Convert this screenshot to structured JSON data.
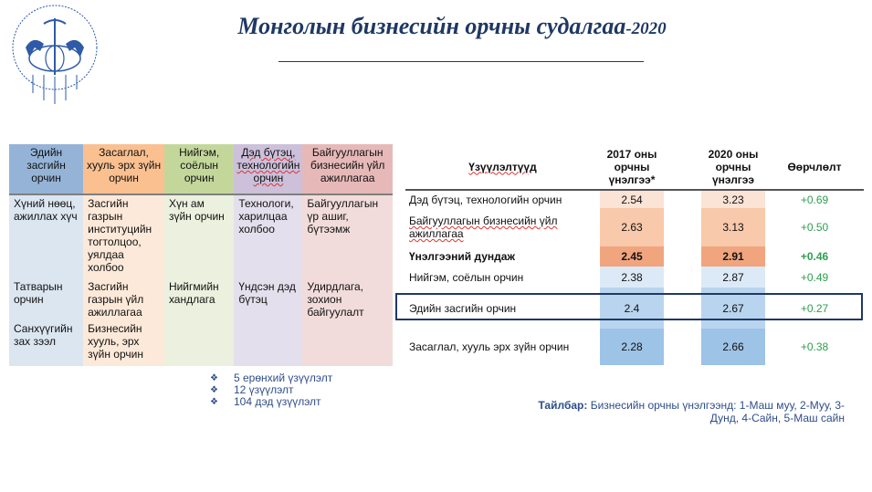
{
  "title": {
    "main": "Монголын бизнесийн орчны судалгаа",
    "year": "-2020"
  },
  "logo": {
    "text": "МОНГОЛЫН ҮНДЭСНИЙ ХУДАЛДАА АЖ ҮЙЛДВЭРИЙН ТАНХИМ",
    "color": "#2e5aa8"
  },
  "left_table": {
    "headers": [
      "Эдийн засгийн орчин",
      "Засаглал, хууль эрх зүйн орчин",
      "Нийгэм, соёлын орчин",
      "Дэд бүтэц, технологийн орчин",
      "Байгууллагын бизнесийн үйл ажиллагаа"
    ],
    "header_colors": [
      "#95b3d7",
      "#fac090",
      "#c4d79b",
      "#ccc0da",
      "#e6b9b8"
    ],
    "body_colors": [
      "#dce6f1",
      "#fde9d9",
      "#ebf1de",
      "#e4dfec",
      "#f2dcdb"
    ],
    "rows": [
      [
        "Хүний нөөц, ажиллах хүч",
        "Засгийн газрын институцийн тогтолцоо, уялдаа холбоо",
        "Хүн ам зүйн орчин",
        "Технологи, харилцаа холбоо",
        "Байгууллагын үр ашиг, бүтээмж"
      ],
      [
        "Татварын орчин",
        "Засгийн газрын үйл ажиллагаа",
        "Нийгмийн хандлага",
        "Үндсэн дэд бүтэц",
        "Удирдлага, зохион байгуулалт"
      ],
      [
        "Санхүүгийн зах зээл",
        "Бизнесийн хууль, эрх зүйн орчин",
        "",
        "",
        ""
      ]
    ]
  },
  "right_table": {
    "headers": [
      "Үзүүлэлтүүд",
      "2017 оны орчны үнэлгээ*",
      "2020 оны орчны үнэлгээ",
      "Өөрчлөлт"
    ],
    "rows": [
      {
        "label": "Дэд бүтэц, технологийн орчин",
        "v2017": "2.54",
        "v2020": "3.23",
        "change": "+0.69",
        "color": "#fbe3d6"
      },
      {
        "label": "Байгууллагын бизнесийн үйл ажиллагаа",
        "v2017": "2.63",
        "v2020": "3.13",
        "change": "+0.50",
        "color": "#f8c9aa"
      },
      {
        "label": "Үнэлгээний дундаж",
        "v2017": "2.45",
        "v2020": "2.91",
        "change": "+0.46",
        "color": "#f1a57e",
        "bold": true
      },
      {
        "label": "Нийгэм, соёлын орчин",
        "v2017": "2.38",
        "v2020": "2.87",
        "change": "+0.49",
        "color": "#dceaf7"
      },
      {
        "label": "Эдийн засгийн орчин",
        "v2017": "2.4",
        "v2020": "2.67",
        "change": "+0.27",
        "color": "#b9d4ee",
        "highlighted": true
      },
      {
        "label": "Засаглал, хууль эрх зүйн орчин",
        "v2017": "2.28",
        "v2020": "2.66",
        "change": "+0.38",
        "color": "#9dc3e6"
      }
    ]
  },
  "bullets": [
    "5 ерөнхий үзүүлэлт",
    "12 үзүүлэлт",
    "104 дэд үзүүлэлт"
  ],
  "note": {
    "label": "Тайлбар:",
    "text": " Бизнесийн орчны үнэлгээнд: 1-Маш муу, 2-Муу, 3-Дунд, 4-Сайн, 5-Маш сайн"
  }
}
